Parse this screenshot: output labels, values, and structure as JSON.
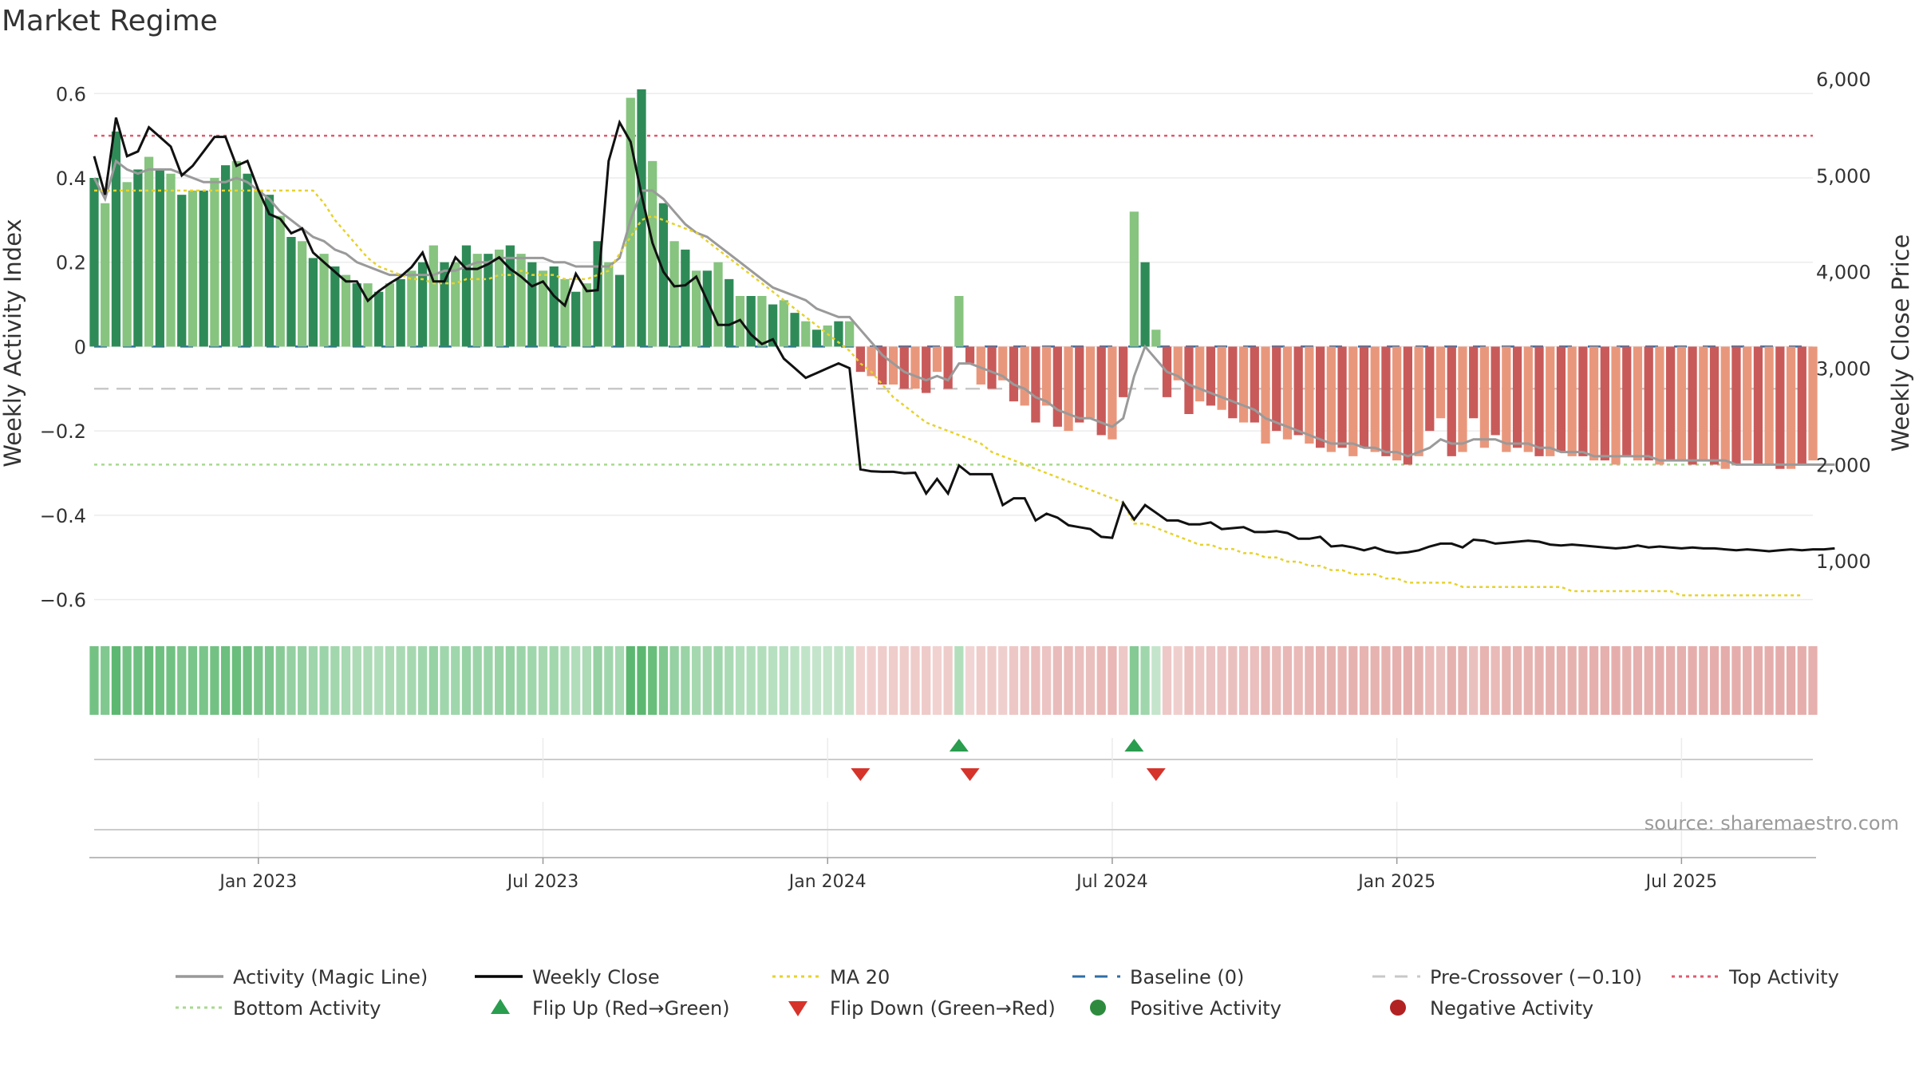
{
  "chart_data": {
    "type": "bar+line",
    "title": "Market Regime",
    "ylabel_left": "Weekly Activity Index",
    "ylabel_right": "Weekly Close Price",
    "ylim_left": [
      -0.65,
      0.68
    ],
    "ylim_right": [
      380,
      6200
    ],
    "yticks_left": [
      {
        "v": 0.6,
        "label": "0.6"
      },
      {
        "v": 0.4,
        "label": "0.4"
      },
      {
        "v": 0.2,
        "label": "0.2"
      },
      {
        "v": 0,
        "label": "0"
      },
      {
        "v": -0.2,
        "label": "−0.2"
      },
      {
        "v": -0.4,
        "label": "−0.4"
      },
      {
        "v": -0.6,
        "label": "−0.6"
      }
    ],
    "yticks_right": [
      {
        "v": 6000,
        "label": "6,000"
      },
      {
        "v": 5000,
        "label": "5,000"
      },
      {
        "v": 4000,
        "label": "4,000"
      },
      {
        "v": 3000,
        "label": "3,000"
      },
      {
        "v": 2000,
        "label": "2,000"
      },
      {
        "v": 1000,
        "label": "1,000"
      }
    ],
    "xticks": [
      {
        "week": 15,
        "label": "Jan 2023"
      },
      {
        "week": 41,
        "label": "Jul 2023"
      },
      {
        "week": 67,
        "label": "Jan 2024"
      },
      {
        "week": 93,
        "label": "Jul 2024"
      },
      {
        "week": 119,
        "label": "Jan 2025"
      },
      {
        "week": 145,
        "label": "Jul 2025"
      }
    ],
    "reference_lines": {
      "top_activity": 0.5,
      "bottom_activity": -0.28,
      "pre_crossover": -0.1,
      "baseline": 0
    },
    "activity": [
      0.4,
      0.34,
      0.51,
      0.39,
      0.42,
      0.45,
      0.42,
      0.41,
      0.36,
      0.37,
      0.37,
      0.4,
      0.43,
      0.44,
      0.41,
      0.37,
      0.36,
      0.31,
      0.26,
      0.25,
      0.21,
      0.22,
      0.19,
      0.17,
      0.15,
      0.15,
      0.13,
      0.15,
      0.16,
      0.18,
      0.2,
      0.24,
      0.2,
      0.2,
      0.24,
      0.22,
      0.22,
      0.23,
      0.24,
      0.22,
      0.2,
      0.18,
      0.19,
      0.16,
      0.13,
      0.15,
      0.25,
      0.2,
      0.17,
      0.59,
      0.61,
      0.44,
      0.34,
      0.25,
      0.23,
      0.18,
      0.18,
      0.2,
      0.16,
      0.12,
      0.12,
      0.12,
      0.1,
      0.11,
      0.08,
      0.06,
      0.04,
      0.05,
      0.06,
      0.06,
      -0.06,
      -0.07,
      -0.09,
      -0.09,
      -0.1,
      -0.1,
      -0.11,
      -0.06,
      -0.1,
      0.12,
      -0.04,
      -0.09,
      -0.1,
      -0.08,
      -0.13,
      -0.14,
      -0.18,
      -0.14,
      -0.19,
      -0.2,
      -0.18,
      -0.17,
      -0.21,
      -0.22,
      -0.12,
      0.32,
      0.2,
      0.04,
      -0.12,
      -0.08,
      -0.16,
      -0.13,
      -0.14,
      -0.15,
      -0.17,
      -0.18,
      -0.18,
      -0.23,
      -0.2,
      -0.22,
      -0.21,
      -0.23,
      -0.24,
      -0.25,
      -0.24,
      -0.26,
      -0.24,
      -0.25,
      -0.26,
      -0.27,
      -0.28,
      -0.26,
      -0.2,
      -0.17,
      -0.26,
      -0.25,
      -0.17,
      -0.24,
      -0.21,
      -0.25,
      -0.24,
      -0.25,
      -0.26,
      -0.26,
      -0.25,
      -0.26,
      -0.26,
      -0.27,
      -0.27,
      -0.28,
      -0.26,
      -0.27,
      -0.27,
      -0.28,
      -0.27,
      -0.27,
      -0.28,
      -0.27,
      -0.28,
      -0.29,
      -0.28,
      -0.27,
      -0.28,
      -0.28,
      -0.29,
      -0.29,
      -0.28,
      -0.27
    ],
    "magic_line": [
      0.4,
      0.35,
      0.44,
      0.42,
      0.41,
      0.42,
      0.42,
      0.42,
      0.41,
      0.4,
      0.39,
      0.39,
      0.39,
      0.4,
      0.39,
      0.37,
      0.35,
      0.32,
      0.3,
      0.28,
      0.26,
      0.25,
      0.23,
      0.22,
      0.2,
      0.19,
      0.18,
      0.17,
      0.17,
      0.17,
      0.17,
      0.17,
      0.18,
      0.18,
      0.19,
      0.2,
      0.2,
      0.21,
      0.21,
      0.21,
      0.21,
      0.21,
      0.2,
      0.2,
      0.19,
      0.19,
      0.19,
      0.19,
      0.21,
      0.3,
      0.37,
      0.37,
      0.35,
      0.32,
      0.29,
      0.27,
      0.26,
      0.24,
      0.22,
      0.2,
      0.18,
      0.16,
      0.14,
      0.13,
      0.12,
      0.11,
      0.09,
      0.08,
      0.07,
      0.07,
      0.04,
      0.01,
      -0.02,
      -0.04,
      -0.06,
      -0.07,
      -0.08,
      -0.07,
      -0.08,
      -0.04,
      -0.04,
      -0.05,
      -0.06,
      -0.07,
      -0.09,
      -0.1,
      -0.12,
      -0.13,
      -0.15,
      -0.16,
      -0.17,
      -0.17,
      -0.18,
      -0.19,
      -0.17,
      -0.07,
      0,
      -0.03,
      -0.06,
      -0.07,
      -0.09,
      -0.1,
      -0.11,
      -0.12,
      -0.13,
      -0.14,
      -0.15,
      -0.17,
      -0.18,
      -0.19,
      -0.2,
      -0.21,
      -0.22,
      -0.23,
      -0.23,
      -0.23,
      -0.24,
      -0.24,
      -0.25,
      -0.25,
      -0.26,
      -0.25,
      -0.24,
      -0.22,
      -0.23,
      -0.23,
      -0.22,
      -0.22,
      -0.22,
      -0.23,
      -0.23,
      -0.23,
      -0.24,
      -0.24,
      -0.25,
      -0.25,
      -0.25,
      -0.26,
      -0.26,
      -0.26,
      -0.26,
      -0.26,
      -0.26,
      -0.27,
      -0.27,
      -0.27,
      -0.27,
      -0.27,
      -0.27,
      -0.27,
      -0.28,
      -0.28,
      -0.28,
      -0.28,
      -0.28,
      -0.28,
      -0.28,
      -0.28,
      -0.28,
      -0.28
    ],
    "ma20": [
      0.37,
      0.37,
      0.37,
      0.37,
      0.37,
      0.37,
      0.37,
      0.37,
      0.37,
      0.37,
      0.37,
      0.37,
      0.37,
      0.37,
      0.37,
      0.37,
      0.37,
      0.37,
      0.37,
      0.37,
      0.37,
      0.34,
      0.3,
      0.27,
      0.24,
      0.21,
      0.19,
      0.18,
      0.17,
      0.16,
      0.16,
      0.15,
      0.15,
      0.15,
      0.16,
      0.16,
      0.16,
      0.17,
      0.17,
      0.18,
      0.17,
      0.17,
      0.17,
      0.16,
      0.16,
      0.16,
      0.17,
      0.18,
      0.22,
      0.26,
      0.3,
      0.31,
      0.3,
      0.29,
      0.28,
      0.27,
      0.25,
      0.23,
      0.21,
      0.19,
      0.17,
      0.15,
      0.13,
      0.11,
      0.09,
      0.07,
      0.05,
      0.03,
      0.01,
      -0.01,
      -0.04,
      -0.06,
      -0.09,
      -0.12,
      -0.14,
      -0.16,
      -0.18,
      -0.19,
      -0.2,
      -0.21,
      -0.22,
      -0.23,
      -0.25,
      -0.26,
      -0.27,
      -0.28,
      -0.29,
      -0.3,
      -0.31,
      -0.32,
      -0.33,
      -0.34,
      -0.35,
      -0.36,
      -0.37,
      -0.42,
      -0.42,
      -0.43,
      -0.44,
      -0.45,
      -0.46,
      -0.47,
      -0.47,
      -0.48,
      -0.48,
      -0.49,
      -0.49,
      -0.5,
      -0.5,
      -0.51,
      -0.51,
      -0.52,
      -0.52,
      -0.53,
      -0.53,
      -0.54,
      -0.54,
      -0.54,
      -0.55,
      -0.55,
      -0.56,
      -0.56,
      -0.56,
      -0.56,
      -0.56,
      -0.57,
      -0.57,
      -0.57,
      -0.57,
      -0.57,
      -0.57,
      -0.57,
      -0.57,
      -0.57,
      -0.57,
      -0.58,
      -0.58,
      -0.58,
      -0.58,
      -0.58,
      -0.58,
      -0.58,
      -0.58,
      -0.58,
      -0.58,
      -0.59,
      -0.59,
      -0.59,
      -0.59,
      -0.59,
      -0.59,
      -0.59,
      -0.59,
      -0.59,
      -0.59,
      -0.59,
      -0.59
    ],
    "weekly_close": [
      5200,
      4800,
      5600,
      5200,
      5250,
      5500,
      5400,
      5300,
      5000,
      5100,
      5250,
      5400,
      5400,
      5100,
      5150,
      4850,
      4600,
      4550,
      4400,
      4450,
      4200,
      4100,
      4000,
      3900,
      3900,
      3700,
      3800,
      3880,
      3950,
      4050,
      4200,
      3900,
      3900,
      4150,
      4030,
      4030,
      4080,
      4150,
      4030,
      3950,
      3850,
      3900,
      3750,
      3650,
      3980,
      3800,
      3810,
      5150,
      5550,
      5350,
      4800,
      4300,
      4000,
      3850,
      3860,
      3950,
      3700,
      3450,
      3450,
      3500,
      3350,
      3250,
      3300,
      3100,
      3000,
      2900,
      2950,
      3000,
      3050,
      3000,
      1950,
      1930,
      1925,
      1925,
      1910,
      1915,
      1700,
      1850,
      1700,
      1990,
      1900,
      1900,
      1900,
      1580,
      1650,
      1650,
      1420,
      1490,
      1450,
      1370,
      1350,
      1330,
      1250,
      1240,
      1600,
      1430,
      1580,
      1500,
      1420,
      1420,
      1380,
      1380,
      1400,
      1330,
      1340,
      1350,
      1300,
      1300,
      1310,
      1290,
      1230,
      1230,
      1250,
      1150,
      1160,
      1140,
      1110,
      1140,
      1100,
      1080,
      1090,
      1110,
      1150,
      1180,
      1180,
      1140,
      1220,
      1210,
      1180,
      1190,
      1200,
      1210,
      1200,
      1170,
      1160,
      1170,
      1160,
      1150,
      1140,
      1130,
      1140,
      1160,
      1140,
      1150,
      1140,
      1130,
      1140,
      1130,
      1130,
      1120,
      1110,
      1120,
      1110,
      1100,
      1110,
      1120,
      1110,
      1120,
      1120,
      1130
    ],
    "flip_up_weeks": [
      79,
      95
    ],
    "flip_down_weeks": [
      70,
      80,
      97
    ],
    "legend": [
      {
        "label": "Activity (Magic Line)",
        "symbol": "line",
        "color": "#999999"
      },
      {
        "label": "Weekly Close",
        "symbol": "line",
        "color": "#000000"
      },
      {
        "label": "MA 20",
        "symbol": "dotted",
        "color": "#e6d22e"
      },
      {
        "label": "Baseline (0)",
        "symbol": "dashed",
        "color": "#2f6ea6"
      },
      {
        "label": "Pre-Crossover (−0.10)",
        "symbol": "dashed",
        "color": "#c8c8c8"
      },
      {
        "label": "Top Activity",
        "symbol": "dotted",
        "color": "#e05a6e"
      },
      {
        "label": "Bottom Activity",
        "symbol": "dotted",
        "color": "#a8d98f"
      },
      {
        "label": "Flip Up (Red→Green)",
        "symbol": "triangle-up",
        "color": "#2a9d4f"
      },
      {
        "label": "Flip Down (Green→Red)",
        "symbol": "triangle-down",
        "color": "#d6332b"
      },
      {
        "label": "Positive Activity",
        "symbol": "circle",
        "color": "#2e8b3e"
      },
      {
        "label": "Negative Activity",
        "symbol": "circle",
        "color": "#b22222"
      }
    ],
    "source": "source: sharemaestro.com"
  },
  "colors": {
    "pos_dark": "#2e8b57",
    "pos_light": "#86c47f",
    "neg_dark": "#c95a5a",
    "neg_light": "#e9977c",
    "strip_pos": "#5cb870",
    "strip_neg": "#d98a87"
  }
}
